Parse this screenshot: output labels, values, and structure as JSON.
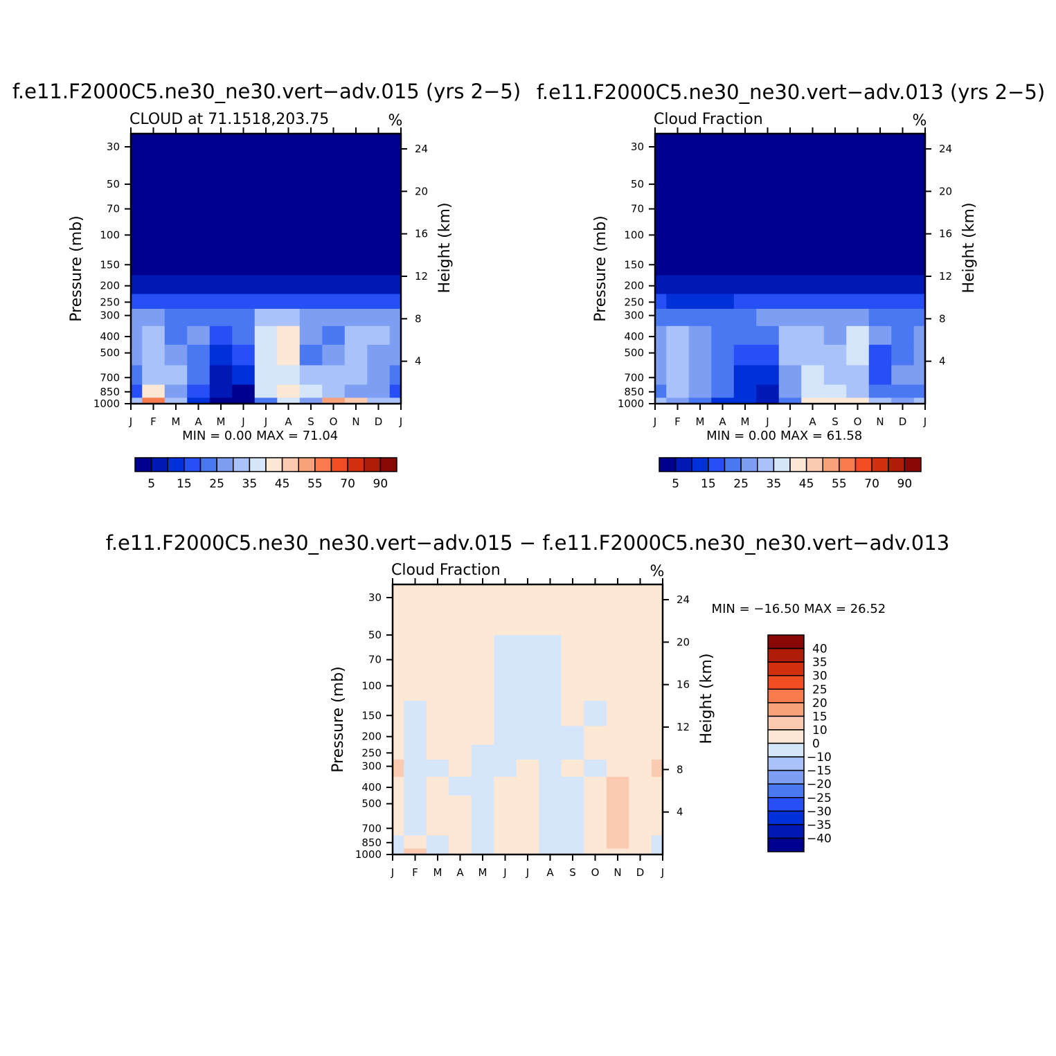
{
  "figure": {
    "title_top_left": "f.e11.F2000C5.ne30_ne30.vert−adv.015 (yrs 2−5)",
    "title_top_right": "f.e11.F2000C5.ne30_ne30.vert−adv.013 (yrs 2−5)",
    "title_bottom": "f.e11.F2000C5.ne30_ne30.vert−adv.015 − f.e11.F2000C5.ne30_ne30.vert−adv.013"
  },
  "chart_data": [
    {
      "type": "heatmap",
      "subtitle": "CLOUD at 71.1518,203.75",
      "units": "%",
      "xlabel": "",
      "ylabel": "Pressure (mb)",
      "ylabel_right": "Height (km)",
      "x_ticks": [
        "J",
        "F",
        "M",
        "A",
        "M",
        "J",
        "J",
        "A",
        "S",
        "O",
        "N",
        "D",
        "J"
      ],
      "y_ticks": [
        30,
        50,
        70,
        100,
        150,
        200,
        250,
        300,
        400,
        500,
        700,
        850,
        1000
      ],
      "y_ticks_right": [
        24,
        20,
        16,
        12,
        8,
        4
      ],
      "y_scale": "log",
      "min_text": "MIN =    0.00",
      "max_text": "MAX =   71.04",
      "min": 0.0,
      "max": 71.04,
      "colorbar": {
        "labels": [
          "5",
          "15",
          "25",
          "35",
          "45",
          "55",
          "70",
          "90"
        ],
        "levels": [
          5,
          10,
          15,
          20,
          25,
          30,
          35,
          40,
          45,
          50,
          55,
          60,
          70,
          80,
          90
        ],
        "colors": [
          "#00008e",
          "#0018b4",
          "#0030d8",
          "#2650f5",
          "#4a78f2",
          "#7d9ef3",
          "#a9c2f9",
          "#d5e6fb",
          "#fde7d5",
          "#fbcab0",
          "#f8a27a",
          "#f77b4d",
          "#f04e22",
          "#d2300f",
          "#b01c08",
          "#880808"
        ]
      },
      "rows": [
        {
          "p": 1000,
          "v": [
            30,
            55,
            30,
            12,
            4,
            2,
            20,
            35,
            28,
            50,
            48,
            30,
            30
          ]
        },
        {
          "p": 850,
          "v": [
            18,
            40,
            28,
            16,
            5,
            3,
            38,
            44,
            35,
            32,
            28,
            26,
            18
          ]
        },
        {
          "p": 700,
          "v": [
            22,
            34,
            30,
            22,
            7,
            12,
            35,
            38,
            30,
            30,
            31,
            28,
            22
          ]
        },
        {
          "p": 500,
          "v": [
            26,
            33,
            28,
            24,
            13,
            17,
            35,
            41,
            24,
            28,
            30,
            29,
            26
          ]
        },
        {
          "p": 400,
          "v": [
            27,
            31,
            24,
            26,
            19,
            23,
            37,
            40,
            29,
            24,
            31,
            31,
            27
          ]
        },
        {
          "p": 300,
          "v": [
            25,
            27,
            22,
            23,
            20,
            24,
            33,
            33,
            28,
            25,
            26,
            25,
            25
          ]
        },
        {
          "p": 250,
          "v": [
            17,
            16,
            16,
            15,
            15,
            16,
            18,
            17,
            16,
            17,
            17,
            16,
            17
          ]
        },
        {
          "p": 200,
          "v": [
            8,
            6,
            8,
            5,
            6,
            7,
            7,
            8,
            8,
            7,
            6,
            6,
            8
          ]
        },
        {
          "p": 150,
          "v": [
            2,
            2,
            2,
            2,
            2,
            2,
            2,
            2,
            2,
            2,
            2,
            2,
            2
          ]
        },
        {
          "p": 100,
          "v": [
            1,
            1,
            1,
            1,
            1,
            1,
            1,
            1,
            1,
            1,
            1,
            1,
            1
          ]
        },
        {
          "p": 30,
          "v": [
            0,
            0,
            0,
            0,
            0,
            0,
            0,
            0,
            0,
            0,
            0,
            0,
            0
          ]
        }
      ]
    },
    {
      "type": "heatmap",
      "subtitle": "Cloud Fraction",
      "units": "%",
      "xlabel": "",
      "ylabel": "Pressure (mb)",
      "ylabel_right": "Height (km)",
      "x_ticks": [
        "J",
        "F",
        "M",
        "A",
        "M",
        "J",
        "J",
        "A",
        "S",
        "O",
        "N",
        "D",
        "J"
      ],
      "y_ticks": [
        30,
        50,
        70,
        100,
        150,
        200,
        250,
        300,
        400,
        500,
        700,
        850,
        1000
      ],
      "y_ticks_right": [
        24,
        20,
        16,
        12,
        8,
        4
      ],
      "y_scale": "log",
      "min_text": "MIN =    0.00",
      "max_text": "MAX =   61.58",
      "min": 0.0,
      "max": 61.58,
      "colorbar": {
        "labels": [
          "5",
          "15",
          "25",
          "35",
          "45",
          "55",
          "70",
          "90"
        ],
        "levels": [
          5,
          10,
          15,
          20,
          25,
          30,
          35,
          40,
          45,
          50,
          55,
          60,
          70,
          80,
          90
        ],
        "colors": [
          "#00008e",
          "#0018b4",
          "#0030d8",
          "#2650f5",
          "#4a78f2",
          "#7d9ef3",
          "#a9c2f9",
          "#d5e6fb",
          "#fde7d5",
          "#fbcab0",
          "#f8a27a",
          "#f77b4d",
          "#f04e22",
          "#d2300f",
          "#b01c08",
          "#880808"
        ]
      },
      "rows": [
        {
          "p": 1000,
          "v": [
            30,
            26,
            22,
            14,
            10,
            8,
            24,
            40,
            44,
            42,
            30,
            28,
            30
          ]
        },
        {
          "p": 850,
          "v": [
            24,
            30,
            26,
            20,
            12,
            7,
            28,
            38,
            36,
            30,
            22,
            24,
            24
          ]
        },
        {
          "p": 700,
          "v": [
            25,
            30,
            27,
            21,
            14,
            12,
            28,
            35,
            30,
            30,
            16,
            25,
            25
          ]
        },
        {
          "p": 500,
          "v": [
            27,
            32,
            28,
            22,
            17,
            19,
            30,
            34,
            31,
            36,
            18,
            24,
            27
          ]
        },
        {
          "p": 400,
          "v": [
            25,
            30,
            28,
            24,
            21,
            24,
            32,
            33,
            29,
            38,
            27,
            22,
            25
          ]
        },
        {
          "p": 300,
          "v": [
            22,
            24,
            23,
            21,
            22,
            25,
            29,
            29,
            27,
            28,
            24,
            22,
            22
          ]
        },
        {
          "p": 250,
          "v": [
            15,
            14,
            14,
            14,
            15,
            16,
            16,
            16,
            15,
            16,
            15,
            15,
            15
          ]
        },
        {
          "p": 200,
          "v": [
            7,
            6,
            6,
            5,
            6,
            7,
            8,
            8,
            8,
            7,
            6,
            7,
            7
          ]
        },
        {
          "p": 150,
          "v": [
            2,
            2,
            2,
            2,
            2,
            2,
            2,
            2,
            2,
            2,
            2,
            2,
            2
          ]
        },
        {
          "p": 100,
          "v": [
            1,
            1,
            1,
            1,
            1,
            1,
            1,
            1,
            1,
            1,
            1,
            1,
            1
          ]
        },
        {
          "p": 30,
          "v": [
            0,
            0,
            0,
            0,
            0,
            0,
            0,
            0,
            0,
            0,
            0,
            0,
            0
          ]
        }
      ]
    },
    {
      "type": "heatmap",
      "subtitle": "Cloud Fraction",
      "units": "%",
      "xlabel": "",
      "ylabel": "Pressure (mb)",
      "ylabel_right": "Height (km)",
      "x_ticks": [
        "J",
        "F",
        "M",
        "A",
        "M",
        "J",
        "J",
        "A",
        "S",
        "O",
        "N",
        "D",
        "J"
      ],
      "y_ticks": [
        30,
        50,
        70,
        100,
        150,
        200,
        250,
        300,
        400,
        500,
        700,
        850,
        1000
      ],
      "y_ticks_right": [
        24,
        20,
        16,
        12,
        8,
        4
      ],
      "y_scale": "log",
      "min_text": "MIN = −16.50",
      "max_text": "MAX =   26.52",
      "min": -16.5,
      "max": 26.52,
      "colorbar": {
        "labels": [
          "40",
          "35",
          "30",
          "25",
          "20",
          "15",
          "10",
          "0",
          "−10",
          "−15",
          "−20",
          "−25",
          "−30",
          "−35",
          "−40"
        ],
        "levels": [
          -40,
          -35,
          -30,
          -25,
          -20,
          -15,
          -10,
          0,
          10,
          15,
          20,
          25,
          30,
          35,
          40
        ],
        "colors": [
          "#00008e",
          "#0018b4",
          "#0030d8",
          "#2650f5",
          "#4a78f2",
          "#7d9ef3",
          "#a9c2f9",
          "#d5e6fb",
          "#fde7d5",
          "#fbcab0",
          "#f8a27a",
          "#f77b4d",
          "#f04e22",
          "#d2300f",
          "#b01c08",
          "#880808"
        ]
      },
      "rows": [
        {
          "p": 1000,
          "v": [
            -2,
            12,
            -3,
            1,
            -2,
            2,
            1,
            -2,
            -1,
            3,
            4,
            2,
            -2
          ]
        },
        {
          "p": 850,
          "v": [
            -1,
            3,
            -2,
            2,
            -3,
            3,
            2,
            -3,
            -2,
            4,
            11,
            2,
            -1
          ]
        },
        {
          "p": 700,
          "v": [
            1,
            -2,
            2,
            3,
            -4,
            4,
            2,
            -4,
            -3,
            3,
            12,
            4,
            1
          ]
        },
        {
          "p": 500,
          "v": [
            2,
            -3,
            3,
            4,
            -5,
            3,
            2,
            -3,
            -4,
            3,
            12,
            4,
            2
          ]
        },
        {
          "p": 400,
          "v": [
            3,
            -4,
            3,
            -3,
            -4,
            3,
            4,
            -2,
            -5,
            3,
            11,
            5,
            3
          ]
        },
        {
          "p": 300,
          "v": [
            11,
            -3,
            -2,
            2,
            -3,
            -3,
            3,
            -4,
            2,
            -3,
            5,
            4,
            11
          ]
        },
        {
          "p": 250,
          "v": [
            6,
            -2,
            2,
            2,
            -2,
            -3,
            -3,
            -3,
            -2,
            3,
            4,
            3,
            6
          ]
        },
        {
          "p": 200,
          "v": [
            2,
            -2,
            2,
            2,
            2,
            -2,
            -2,
            -2,
            -2,
            2,
            2,
            2,
            2
          ]
        },
        {
          "p": 150,
          "v": [
            1,
            -1,
            1,
            1,
            1,
            -1,
            -1,
            -1,
            1,
            -1,
            2,
            1,
            1
          ]
        },
        {
          "p": 100,
          "v": [
            1,
            1,
            1,
            1,
            1,
            -1,
            -1,
            -1,
            1,
            1,
            1,
            1,
            1
          ]
        },
        {
          "p": 30,
          "v": [
            1,
            1,
            1,
            1,
            1,
            1,
            1,
            1,
            1,
            1,
            1,
            1,
            1
          ]
        }
      ]
    }
  ]
}
